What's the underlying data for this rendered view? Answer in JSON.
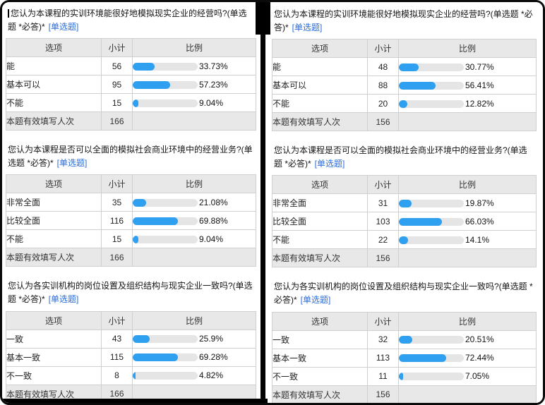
{
  "colors": {
    "bar_fill": "#2f9ff0",
    "bar_track": "#e5e5e5",
    "link_blue": "#2a6cd9",
    "header_bg": "#e8e8e8",
    "frame_border": "#0a0a0a"
  },
  "table": {
    "headers": {
      "option": "选项",
      "count": "小计",
      "ratio": "比例"
    },
    "footer_label": "本题有效填写人次"
  },
  "panels": [
    {
      "side": "left",
      "questions": [
        {
          "title": "您认为本课程的实训环境能很好地模拟现实企业的经营吗?(单选题 *必答)*",
          "tag": "[单选题]",
          "cursor": true,
          "rows": [
            {
              "option": "能",
              "count": "56",
              "pct": 33.73,
              "pct_label": "33.73%"
            },
            {
              "option": "基本可以",
              "count": "95",
              "pct": 57.23,
              "pct_label": "57.23%"
            },
            {
              "option": "不能",
              "count": "15",
              "pct": 9.04,
              "pct_label": "9.04%"
            }
          ],
          "total": "166"
        },
        {
          "title": "您认为本课程是否可以全面的模拟社会商业环境中的经营业务?(单选题 *必答)*",
          "tag": "[单选题]",
          "cursor": false,
          "rows": [
            {
              "option": "非常全面",
              "count": "35",
              "pct": 21.08,
              "pct_label": "21.08%"
            },
            {
              "option": "比较全面",
              "count": "116",
              "pct": 69.88,
              "pct_label": "69.88%"
            },
            {
              "option": "不能",
              "count": "15",
              "pct": 9.04,
              "pct_label": "9.04%"
            }
          ],
          "total": "166"
        },
        {
          "title": "您认为各实训机构的岗位设置及组织结构与现实企业一致吗?(单选题 *必答)*",
          "tag": "[单选题]",
          "cursor": false,
          "rows": [
            {
              "option": "一致",
              "count": "43",
              "pct": 25.9,
              "pct_label": "25.9%"
            },
            {
              "option": "基本一致",
              "count": "115",
              "pct": 69.28,
              "pct_label": "69.28%"
            },
            {
              "option": "不一致",
              "count": "8",
              "pct": 4.82,
              "pct_label": "4.82%"
            }
          ],
          "total": "166"
        }
      ]
    },
    {
      "side": "right",
      "questions": [
        {
          "title": "您认为本课程的实训环境能很好地模拟现实企业的经营吗?(单选题 *必答)*",
          "tag": "[单选题]",
          "cursor": false,
          "rows": [
            {
              "option": "能",
              "count": "48",
              "pct": 30.77,
              "pct_label": "30.77%"
            },
            {
              "option": "基本可以",
              "count": "88",
              "pct": 56.41,
              "pct_label": "56.41%"
            },
            {
              "option": "不能",
              "count": "20",
              "pct": 12.82,
              "pct_label": "12.82%"
            }
          ],
          "total": "156"
        },
        {
          "title": "您认为本课程是否可以全面的模拟社会商业环境中的经营业务?(单选题 *必答)*",
          "tag": "[单选题]",
          "cursor": false,
          "rows": [
            {
              "option": "非常全面",
              "count": "31",
              "pct": 19.87,
              "pct_label": "19.87%"
            },
            {
              "option": "比较全面",
              "count": "103",
              "pct": 66.03,
              "pct_label": "66.03%"
            },
            {
              "option": "不能",
              "count": "22",
              "pct": 14.1,
              "pct_label": "14.1%"
            }
          ],
          "total": "156"
        },
        {
          "title": "您认为各实训机构的岗位设置及组织结构与现实企业一致吗?(单选题 *必答)*",
          "tag": "[单选题]",
          "cursor": false,
          "rows": [
            {
              "option": "一致",
              "count": "32",
              "pct": 20.51,
              "pct_label": "20.51%"
            },
            {
              "option": "基本一致",
              "count": "113",
              "pct": 72.44,
              "pct_label": "72.44%"
            },
            {
              "option": "不一致",
              "count": "11",
              "pct": 7.05,
              "pct_label": "7.05%"
            }
          ],
          "total": "156"
        }
      ]
    }
  ]
}
